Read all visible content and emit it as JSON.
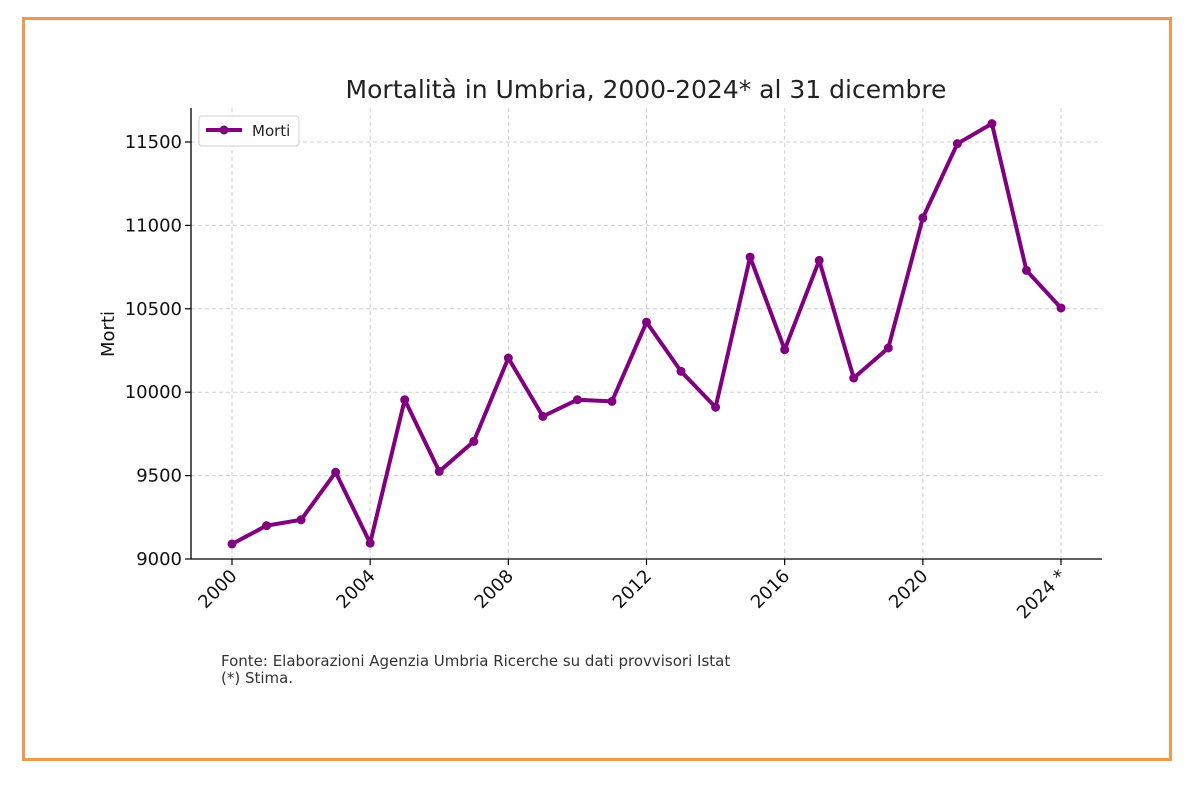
{
  "chart_data": {
    "type": "line",
    "title": "Mortalità in Umbria, 2000-2024* al 31 dicembre",
    "xlabel": "",
    "ylabel": "Morti",
    "x": [
      2000,
      2001,
      2002,
      2003,
      2004,
      2005,
      2006,
      2007,
      2008,
      2009,
      2010,
      2011,
      2012,
      2013,
      2014,
      2015,
      2016,
      2017,
      2018,
      2019,
      2020,
      2021,
      2022,
      2023,
      2024
    ],
    "series": [
      {
        "name": "Morti",
        "color": "#800080",
        "values": [
          9090,
          9200,
          9235,
          9520,
          9095,
          9955,
          9525,
          9705,
          10205,
          9855,
          9955,
          9945,
          10420,
          10125,
          9910,
          10810,
          10255,
          10790,
          10085,
          10265,
          11045,
          11490,
          11610,
          10730,
          10505
        ]
      }
    ],
    "xticks": [
      2000,
      2004,
      2008,
      2012,
      2016,
      2020,
      2024
    ],
    "xtick_labels": [
      "2000",
      "2004",
      "2008",
      "2012",
      "2016",
      "2020",
      "2024 *"
    ],
    "yticks": [
      9000,
      9500,
      10000,
      10500,
      11000,
      11500
    ],
    "ytick_labels": [
      "9000",
      "9500",
      "10000",
      "10500",
      "11000",
      "11500"
    ],
    "xlim": [
      1999,
      2025.2
    ],
    "ylim": [
      9000,
      11700
    ],
    "grid": true,
    "legend_position": "top-left"
  },
  "notes": {
    "source": "Fonte: Elaborazioni Agenzia Umbria Ricerche su dati provvisori Istat",
    "asterisk": "(*) Stima."
  },
  "colors": {
    "frame": "#f0984c",
    "series": "#800080"
  }
}
